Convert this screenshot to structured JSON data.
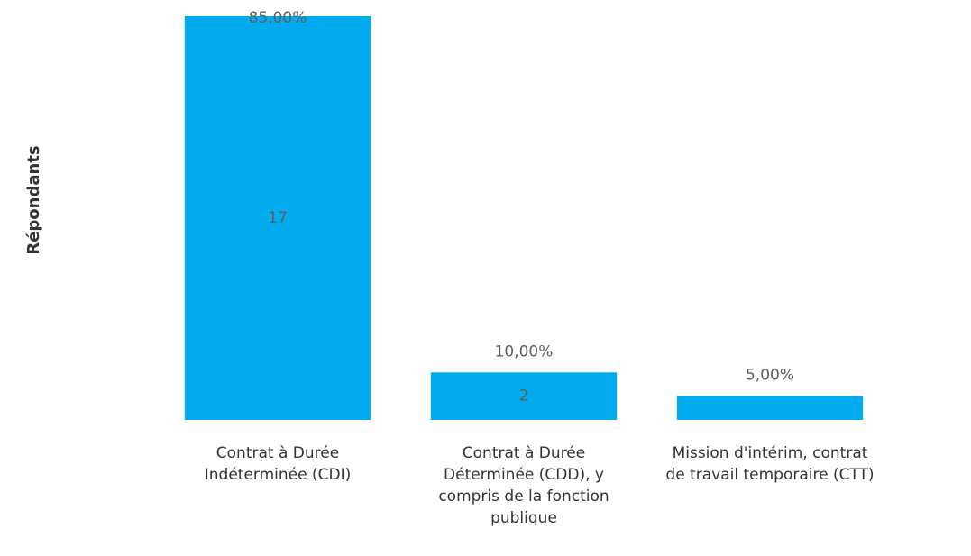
{
  "chart_data": {
    "type": "bar",
    "y_label": "Répondants",
    "categories": [
      "Contrat à Durée Indéterminée (CDI)",
      "Contrat à Durée Déterminée (CDD), y compris de la fonction publique",
      "Mission d'intérim, contrat de travail temporaire (CTT)"
    ],
    "values": [
      17,
      2,
      1
    ],
    "percentages": [
      85,
      10,
      5
    ],
    "percentage_labels": [
      "85,00%",
      "10,00%",
      "5,00%"
    ],
    "count_labels_shown": [
      true,
      true,
      false
    ],
    "color": "#01abee",
    "ylim": [
      0,
      17
    ]
  }
}
